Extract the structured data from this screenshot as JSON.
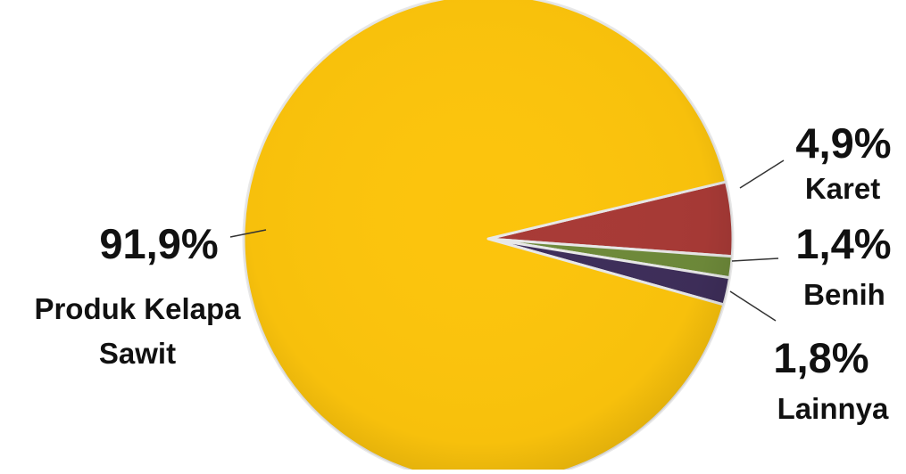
{
  "chart_data": {
    "type": "pie",
    "title": "",
    "slices": [
      {
        "label_lines": [
          "Karet"
        ],
        "value": 4.9,
        "value_text": "4,9%",
        "color": "#A83A36"
      },
      {
        "label_lines": [
          "Benih"
        ],
        "value": 1.4,
        "value_text": "1,4%",
        "color": "#6E8A3A"
      },
      {
        "label_lines": [
          "Lainnya"
        ],
        "value": 1.8,
        "value_text": "1,8%",
        "color": "#3E2E5A"
      },
      {
        "label_lines": [
          "Produk Kelapa",
          "Sawit"
        ],
        "value": 91.9,
        "value_text": "91,9%",
        "color": "#FCC40C"
      }
    ],
    "legend": "none",
    "data_labels": "outside with leader lines"
  }
}
